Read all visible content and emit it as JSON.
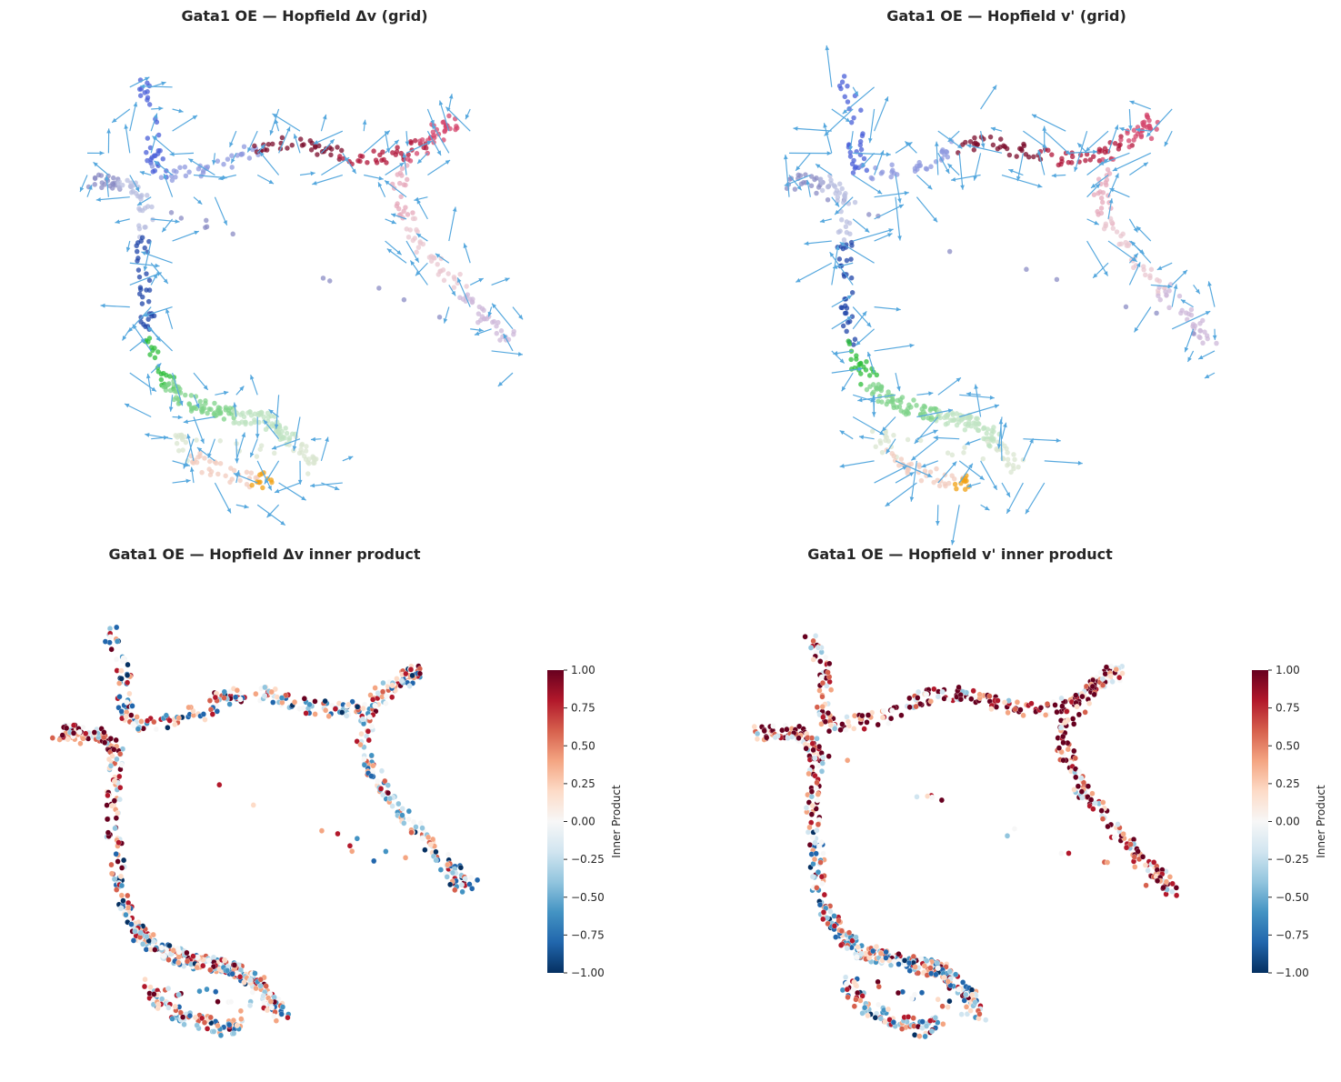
{
  "colors": {
    "arrow": "#56a8de",
    "cluster_palette": [
      "#4a5fd8",
      "#8f99df",
      "#7a0a2a",
      "#b0153a",
      "#d4456c",
      "#e6a8bb",
      "#e9c7d0",
      "#cdb8d9",
      "#8b8cc4",
      "#b9bfe0",
      "#1f44a8",
      "#2ebd3b",
      "#7fd38a",
      "#bfe3c1",
      "#d9e5d0",
      "#f1cbbd",
      "#f0a013"
    ],
    "diverging": [
      "#053061",
      "#2166ac",
      "#4393c3",
      "#92c5de",
      "#d1e5f0",
      "#f7f7f7",
      "#fddbc7",
      "#f4a582",
      "#d6604d",
      "#b2182b",
      "#67001f"
    ]
  },
  "chart_data": [
    {
      "type": "scatter",
      "title": "Gata1 OE — Hopfield Δv (grid)",
      "xlabel": "",
      "ylabel": "",
      "overlay": "velocity-grid-arrows",
      "points": "cells colored by cluster",
      "grid": false
    },
    {
      "type": "scatter",
      "title": "Gata1 OE — Hopfield v' (grid)",
      "xlabel": "",
      "ylabel": "",
      "overlay": "velocity-grid-arrows",
      "points": "cells colored by cluster",
      "grid": false
    },
    {
      "type": "scatter",
      "title": "Gata1 OE — Hopfield Δv inner product",
      "xlabel": "",
      "ylabel": "",
      "color_scale": "diverging-RdBu_r",
      "colorbar": {
        "label": "Inner Product",
        "range": [
          -1.0,
          1.0
        ],
        "ticks": [
          "1.00",
          "0.75",
          "0.50",
          "0.25",
          "0.00",
          "−0.25",
          "−0.50",
          "−0.75",
          "−1.00"
        ],
        "placement": "right"
      },
      "grid": false
    },
    {
      "type": "scatter",
      "title": "Gata1 OE — Hopfield v' inner product",
      "xlabel": "",
      "ylabel": "",
      "color_scale": "diverging-RdBu_r",
      "colorbar": {
        "label": "Inner Product",
        "range": [
          -1.0,
          1.0
        ],
        "ticks": [
          "1.00",
          "0.75",
          "0.50",
          "0.25",
          "0.00",
          "−0.25",
          "−0.50",
          "−0.75",
          "−1.00"
        ],
        "placement": "right"
      },
      "grid": false
    }
  ]
}
